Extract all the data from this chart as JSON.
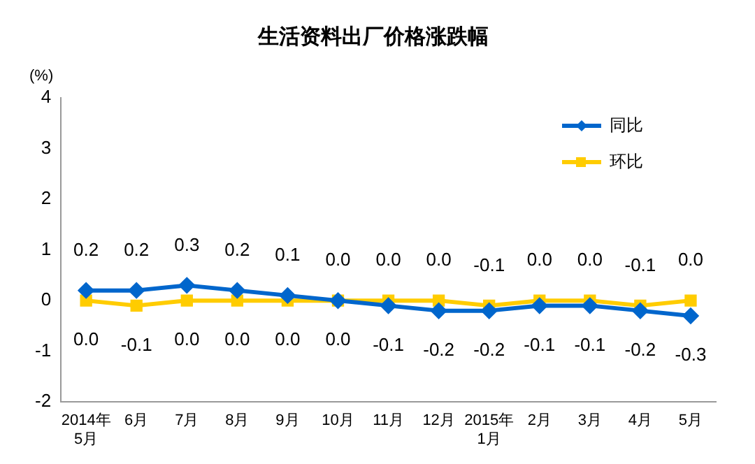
{
  "chart_data": {
    "type": "line",
    "title": "生活资料出厂价格涨跌幅",
    "ylabel": "(%)",
    "categories": [
      "2014年\n5月",
      "6月",
      "7月",
      "8月",
      "9月",
      "10月",
      "11月",
      "12月",
      "2015年\n1月",
      "2月",
      "3月",
      "4月",
      "5月"
    ],
    "series": [
      {
        "name": "同比",
        "color": "#0066cc",
        "marker": "diamond",
        "values": [
          0.2,
          0.2,
          0.3,
          0.2,
          0.1,
          0.0,
          -0.1,
          -0.2,
          -0.2,
          -0.1,
          -0.1,
          -0.2,
          -0.3
        ],
        "value_labels": [
          "0.2",
          "0.2",
          "0.3",
          "0.2",
          "0.1",
          "0.0",
          "-0.1",
          "-0.2",
          "-0.2",
          "-0.1",
          "-0.1",
          "-0.2",
          "-0.3"
        ]
      },
      {
        "name": "环比",
        "color": "#ffcc00",
        "marker": "square",
        "values": [
          0.0,
          -0.1,
          0.0,
          0.0,
          0.0,
          0.0,
          0.0,
          0.0,
          -0.1,
          0.0,
          0.0,
          -0.1,
          0.0
        ],
        "value_labels": [
          "0.0",
          "-0.1",
          "0.0",
          "0.0",
          "0.0",
          "0.0",
          "0.0",
          "0.0",
          "-0.1",
          "0.0",
          "0.0",
          "-0.1",
          "0.0"
        ]
      }
    ],
    "ylim": [
      -2,
      4
    ],
    "yticks": [
      -2,
      -1,
      0,
      1,
      2,
      3,
      4
    ],
    "grid": false,
    "legend": "top right"
  }
}
